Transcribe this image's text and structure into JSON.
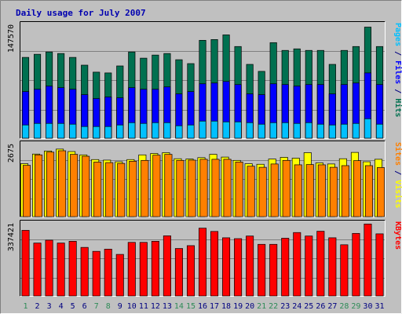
{
  "colors": {
    "background": "#c0c0c0",
    "title": "#0000b0",
    "pages": "#00c0ff",
    "files": "#0000ff",
    "hits": "#007050",
    "sites": "#ff8000",
    "visits": "#ffff00",
    "kbytes": "#ff0000",
    "weekend_label": "#2e8b57",
    "weekday_label": "#000080"
  },
  "chart_data": {
    "title": "Daily usage for July 2007",
    "days": [
      "1",
      "2",
      "3",
      "4",
      "5",
      "6",
      "7",
      "8",
      "9",
      "10",
      "11",
      "12",
      "13",
      "14",
      "15",
      "16",
      "17",
      "18",
      "19",
      "20",
      "21",
      "22",
      "23",
      "24",
      "25",
      "26",
      "27",
      "28",
      "29",
      "30",
      "31"
    ],
    "weekend_days": [
      "1",
      "7",
      "8",
      "14",
      "15",
      "21",
      "22",
      "28",
      "29"
    ],
    "panels": [
      {
        "type": "bar",
        "y_tick_label": "147570",
        "ymax": 147570,
        "side_label_parts": [
          "Pages",
          " / ",
          "Files",
          " / ",
          "Hits"
        ],
        "side_label_colors": [
          "#00c0ff",
          "#000080",
          "#0000ff",
          "#000080",
          "#007050"
        ],
        "series": [
          {
            "name": "Hits",
            "values": [
              104000,
              108000,
              111000,
              109000,
              104000,
              94000,
              85000,
              84000,
              93000,
              111000,
              103000,
              107000,
              109000,
              101000,
              96000,
              126000,
              127000,
              133000,
              118000,
              95000,
              86000,
              123000,
              113000,
              115000,
              113000,
              113000,
              95000,
              113000,
              118000,
              143000,
              118000
            ]
          },
          {
            "name": "Files",
            "values": [
              60000,
              63000,
              67000,
              65000,
              63000,
              56000,
              51000,
              53000,
              52000,
              65000,
              63000,
              63000,
              66000,
              57000,
              60000,
              70000,
              71000,
              73000,
              69000,
              57000,
              56000,
              70000,
              69000,
              67000,
              69000,
              69000,
              57000,
              69000,
              71000,
              84000,
              69000
            ]
          },
          {
            "name": "Pages",
            "values": [
              17000,
              19000,
              19000,
              19000,
              18000,
              15000,
              15000,
              15000,
              17000,
              20000,
              19000,
              20000,
              20000,
              16000,
              17000,
              22000,
              22000,
              21000,
              21000,
              20000,
              18000,
              20000,
              20000,
              19000,
              20000,
              18000,
              17000,
              18000,
              19000,
              25000,
              18000
            ]
          }
        ]
      },
      {
        "type": "bar",
        "y_tick_label": "2675",
        "ymax": 2675,
        "side_label_parts": [
          "Sites",
          " / ",
          "Visits"
        ],
        "side_label_colors": [
          "#ff8000",
          "#000080",
          "#ffff00"
        ],
        "series": [
          {
            "name": "Visits",
            "values": [
              1920,
              2270,
              2380,
              2450,
              2360,
              2240,
              2070,
              2050,
              1990,
              2070,
              2240,
              2290,
              2320,
              2100,
              2090,
              2140,
              2260,
              2160,
              2040,
              1920,
              1900,
              2090,
              2150,
              2120,
              2320,
              1950,
              1910,
              2100,
              2330,
              1990,
              2080
            ]
          },
          {
            "name": "Sites",
            "values": [
              1860,
              2240,
              2340,
              2390,
              2260,
              2190,
              1980,
              1960,
              1930,
              2010,
              2040,
              2230,
              2260,
              2040,
              2050,
              2080,
              2080,
              2080,
              1980,
              1830,
              1790,
              1910,
              2040,
              1880,
              1890,
              1880,
              1790,
              1850,
              2030,
              1850,
              1780
            ]
          }
        ]
      },
      {
        "type": "bar",
        "y_tick_label": "337421",
        "ymax": 337421,
        "side_label_parts": [
          "KBytes"
        ],
        "side_label_colors": [
          "#ff0000"
        ],
        "series": [
          {
            "name": "KBytes",
            "values": [
              300000,
              242000,
              255000,
              242000,
              250000,
              222000,
              204000,
              214000,
              190000,
              245000,
              245000,
              250000,
              275000,
              217000,
              230000,
              310000,
              295000,
              266000,
              262000,
              274000,
              236000,
              236000,
              264000,
              290000,
              274000,
              296000,
              266000,
              234000,
              286000,
              329000,
              284000
            ]
          }
        ]
      }
    ]
  }
}
